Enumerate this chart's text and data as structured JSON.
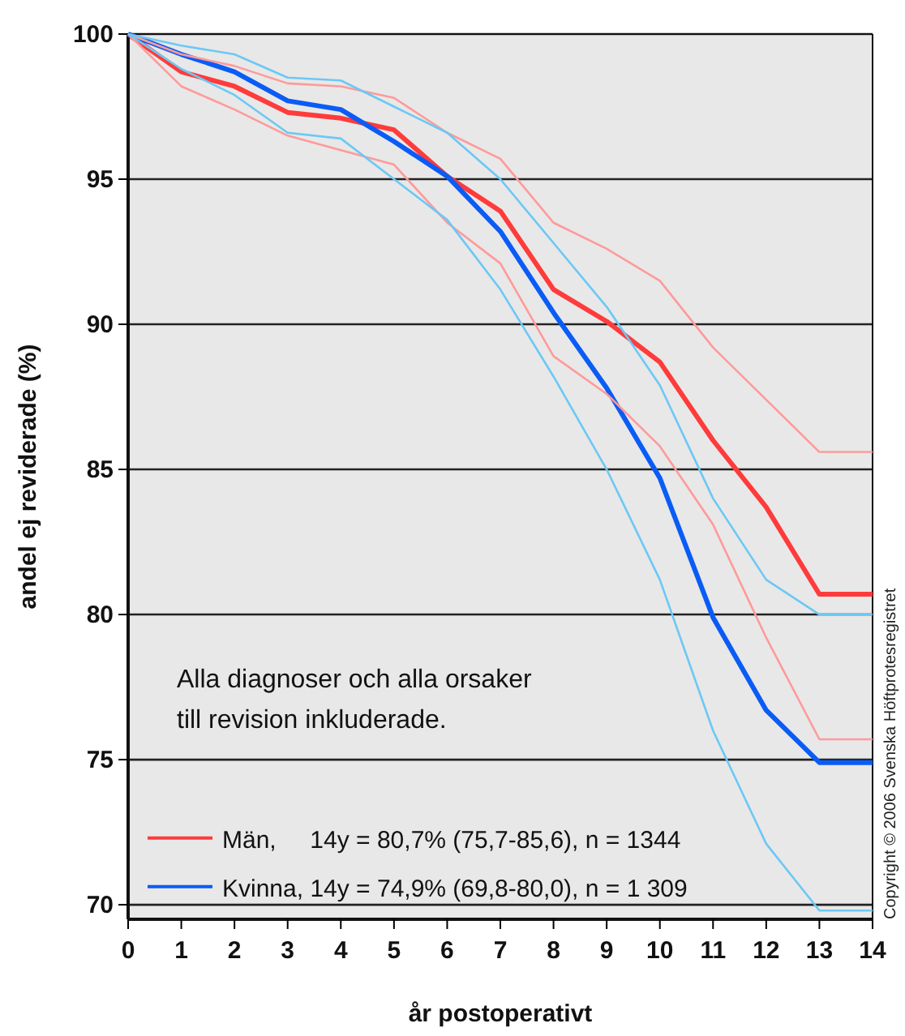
{
  "chart_data": {
    "type": "line",
    "xlabel": "år postoperativt",
    "ylabel": "andel ej reviderade (%)",
    "x": [
      0,
      1,
      2,
      3,
      4,
      5,
      6,
      7,
      8,
      9,
      10,
      11,
      12,
      13,
      14
    ],
    "xlim": [
      0,
      14
    ],
    "xticks": [
      0,
      1,
      2,
      3,
      4,
      5,
      6,
      7,
      8,
      9,
      10,
      11,
      12,
      13,
      14
    ],
    "ylim": [
      69.5,
      100
    ],
    "yticks": [
      70,
      75,
      80,
      85,
      90,
      95,
      100
    ],
    "grid": "y",
    "legend": "bottom left",
    "line_style": "solid",
    "marker": "none",
    "series": [
      {
        "color": "#ff9a9a",
        "values": [
          100,
          99.3,
          98.9,
          98.3,
          98.2,
          97.8,
          96.6,
          95.7,
          93.5,
          92.6,
          91.5,
          89.2,
          87.4,
          85.6,
          85.6
        ]
      },
      {
        "color": "#ff9a9a",
        "values": [
          100,
          98.2,
          97.4,
          96.5,
          96.0,
          95.5,
          93.5,
          92.1,
          88.9,
          87.6,
          85.8,
          83.1,
          79.2,
          75.7,
          75.7
        ]
      },
      {
        "color": "#6cc8f5",
        "values": [
          100,
          99.6,
          99.3,
          98.5,
          98.4,
          97.5,
          96.6,
          95.0,
          92.8,
          90.6,
          87.9,
          84.0,
          81.2,
          80.0,
          80.0
        ]
      },
      {
        "color": "#6cc8f5",
        "values": [
          100,
          98.8,
          97.9,
          96.6,
          96.4,
          95.0,
          93.6,
          91.2,
          88.2,
          85.0,
          81.2,
          76.0,
          72.1,
          69.8,
          69.8
        ]
      },
      {
        "name": "Män,     14y = 80,7% (75,7-85,6), n = 1344",
        "color": "#ff3b3b",
        "values": [
          100,
          98.7,
          98.2,
          97.3,
          97.1,
          96.7,
          95.1,
          93.9,
          91.2,
          90.1,
          88.7,
          86.0,
          83.7,
          80.7,
          80.7
        ]
      },
      {
        "name": "Kvinna, 14y = 74,9% (69,8-80,0), n = 1 309",
        "color": "#0a5cf5",
        "values": [
          100,
          99.3,
          98.7,
          97.7,
          97.4,
          96.3,
          95.1,
          93.2,
          90.4,
          87.8,
          84.7,
          79.9,
          76.7,
          74.9,
          74.9
        ]
      }
    ],
    "annotations": [
      "Alla diagnoser och alla orsaker\ntill revision inkluderade.",
      "Copyright © 2006 Svenska Höftprotesregistret"
    ]
  }
}
